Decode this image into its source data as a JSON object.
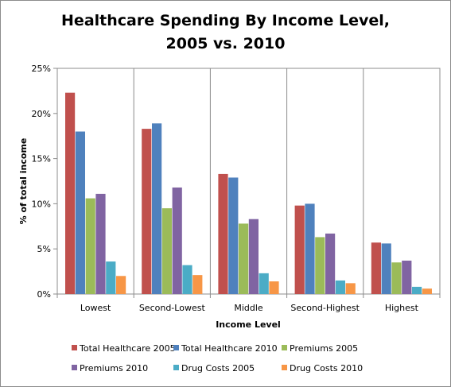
{
  "chart_data": {
    "type": "bar",
    "title_line1": "Healthcare Spending By Income Level,",
    "title_line2": "2005 vs. 2010",
    "xlabel": "Income Level",
    "ylabel": "% of total income",
    "categories": [
      "Lowest",
      "Second-Lowest",
      "Middle",
      "Second-Highest",
      "Highest"
    ],
    "yticks": [
      "0%",
      "5%",
      "10%",
      "15%",
      "20%",
      "25%"
    ],
    "ylim": [
      0,
      25
    ],
    "grid": false,
    "legend_position": "bottom",
    "series": [
      {
        "name": "Total Healthcare 2005",
        "color": "#c0504d",
        "values": [
          22.3,
          18.3,
          13.3,
          9.8,
          5.7
        ]
      },
      {
        "name": "Total Healthcare 2010",
        "color": "#4f81bd",
        "values": [
          18.0,
          18.9,
          12.9,
          10.0,
          5.6
        ]
      },
      {
        "name": "Premiums 2005",
        "color": "#9bbb59",
        "values": [
          10.6,
          9.5,
          7.8,
          6.3,
          3.5
        ]
      },
      {
        "name": "Premiums 2010",
        "color": "#8064a2",
        "values": [
          11.1,
          11.8,
          8.3,
          6.7,
          3.7
        ]
      },
      {
        "name": "Drug Costs 2005",
        "color": "#4bacc6",
        "values": [
          3.6,
          3.2,
          2.3,
          1.5,
          0.8
        ]
      },
      {
        "name": "Drug Costs 2010",
        "color": "#f79646",
        "values": [
          2.0,
          2.1,
          1.4,
          1.2,
          0.6
        ]
      }
    ]
  }
}
